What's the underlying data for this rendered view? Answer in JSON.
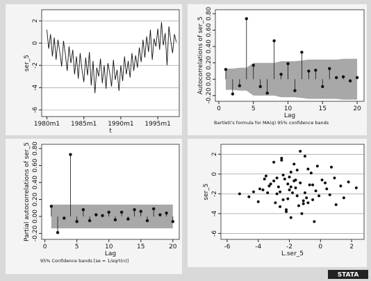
{
  "chart_data": [
    {
      "type": "line",
      "xlabel": "t",
      "ylabel": "ser_5",
      "color": "#111111",
      "grid": true,
      "x": [
        1980,
        1980.25,
        1980.5,
        1980.75,
        1981,
        1981.25,
        1981.5,
        1981.75,
        1982,
        1982.25,
        1982.5,
        1982.75,
        1983,
        1983.25,
        1983.5,
        1983.75,
        1984,
        1984.25,
        1984.5,
        1984.75,
        1985,
        1985.25,
        1985.5,
        1985.75,
        1986,
        1986.25,
        1986.5,
        1986.75,
        1987,
        1987.25,
        1987.5,
        1987.75,
        1988,
        1988.25,
        1988.5,
        1988.75,
        1989,
        1989.25,
        1989.5,
        1989.75,
        1990,
        1990.25,
        1990.5,
        1990.75,
        1991,
        1991.25,
        1991.5,
        1991.75,
        1992,
        1992.25,
        1992.5,
        1992.75,
        1993,
        1993.25,
        1993.5,
        1993.75,
        1994,
        1994.25,
        1994.5,
        1994.75,
        1995,
        1995.25,
        1995.5,
        1995.75,
        1996,
        1996.25,
        1996.5,
        1996.75,
        1997,
        1997.25,
        1997.5
      ],
      "values": [
        1.2,
        -0.5,
        0.8,
        -1.2,
        0.5,
        -1.5,
        0.3,
        -0.8,
        -2.1,
        0.2,
        -1.0,
        -2.5,
        -0.3,
        -1.8,
        -0.6,
        -2.8,
        -1.2,
        -3.2,
        -0.9,
        -2.4,
        -3.5,
        -1.3,
        -2.9,
        -0.8,
        -3.8,
        -1.6,
        -4.5,
        -2.2,
        -3.0,
        -1.4,
        -3.6,
        -2.0,
        -4.1,
        -1.8,
        -2.7,
        -3.9,
        -1.5,
        -3.3,
        -2.4,
        -4.3,
        -2.0,
        -3.4,
        -1.2,
        -2.8,
        -1.6,
        -3.1,
        -0.9,
        -2.5,
        -1.1,
        -2.2,
        -0.4,
        -1.7,
        0.3,
        -1.3,
        0.6,
        -0.8,
        1.2,
        -1.5,
        0.4,
        -0.3,
        1.3,
        -0.6,
        1.9,
        -0.2,
        0.9,
        -2.0,
        1.5,
        0.2,
        -0.9,
        0.8,
        0.1
      ],
      "xlim": [
        1979.3,
        1997.9
      ],
      "ylim": [
        -6.6,
        3
      ],
      "xticks": [
        {
          "value": 1980,
          "label": "1980m1"
        },
        {
          "value": 1985,
          "label": "1985m1"
        },
        {
          "value": 1990,
          "label": "1990m1"
        },
        {
          "value": 1995,
          "label": "1995m1"
        }
      ],
      "yticks": [
        -6,
        -4,
        -2,
        0,
        2
      ]
    },
    {
      "type": "stem",
      "xlabel": "Lag",
      "ylabel": "Autocorrelations of ser_5",
      "note": "Bartlett's formula for MA(q) 95% confidence bands",
      "color": "#111111",
      "band_color": "#a8a8a8",
      "grid": false,
      "x": [
        1,
        2,
        3,
        4,
        5,
        6,
        7,
        8,
        9,
        10,
        11,
        12,
        13,
        14,
        15,
        16,
        17,
        18,
        19,
        20
      ],
      "values": [
        0.12,
        -0.18,
        -0.08,
        0.74,
        0.17,
        -0.09,
        -0.17,
        0.47,
        0.06,
        0.19,
        -0.14,
        0.33,
        0.1,
        0.11,
        -0.09,
        0.13,
        0.02,
        0.03,
        -0.02,
        0.02
      ],
      "band_upper": [
        0.13,
        0.13,
        0.14,
        0.14,
        0.2,
        0.2,
        0.2,
        0.2,
        0.22,
        0.22,
        0.22,
        0.23,
        0.24,
        0.24,
        0.24,
        0.24,
        0.24,
        0.25,
        0.25,
        0.25
      ],
      "band_lower": [
        -0.13,
        -0.13,
        -0.14,
        -0.14,
        -0.2,
        -0.2,
        -0.2,
        -0.2,
        -0.22,
        -0.22,
        -0.22,
        -0.23,
        -0.24,
        -0.24,
        -0.24,
        -0.24,
        -0.24,
        -0.25,
        -0.25,
        -0.25
      ],
      "xlim": [
        -0.5,
        21
      ],
      "ylim": [
        -0.27,
        0.85
      ],
      "xticks": [
        0,
        5,
        10,
        15,
        20
      ],
      "yticks": [
        {
          "value": -0.2,
          "label": "-0.20"
        },
        {
          "value": 0,
          "label": "0.00"
        },
        {
          "value": 0.2,
          "label": "0.20"
        },
        {
          "value": 0.4,
          "label": "0.40"
        },
        {
          "value": 0.6,
          "label": "0.60"
        },
        {
          "value": 0.8,
          "label": "0.80"
        }
      ]
    },
    {
      "type": "stem",
      "xlabel": "Lag",
      "ylabel": "Partial autocorrelations of ser_5",
      "note": "95% Confidence bands [se = 1/sqrt(n)]",
      "color": "#111111",
      "band_color": "#a8a8a8",
      "grid": false,
      "x": [
        1,
        2,
        3,
        4,
        5,
        6,
        7,
        8,
        9,
        10,
        11,
        12,
        13,
        14,
        15,
        16,
        17,
        18,
        19,
        20
      ],
      "values": [
        0.12,
        -0.19,
        -0.02,
        0.73,
        -0.06,
        0.08,
        -0.05,
        0.02,
        0.01,
        0.05,
        -0.04,
        0.05,
        -0.03,
        0.08,
        0.06,
        -0.05,
        0.09,
        0.02,
        0.04,
        -0.06
      ],
      "band_upper": [
        0.14,
        0.14,
        0.14,
        0.14,
        0.14,
        0.14,
        0.14,
        0.14,
        0.14,
        0.14,
        0.14,
        0.14,
        0.14,
        0.14,
        0.14,
        0.14,
        0.14,
        0.14,
        0.14,
        0.14
      ],
      "band_lower": [
        -0.14,
        -0.14,
        -0.14,
        -0.14,
        -0.14,
        -0.14,
        -0.14,
        -0.14,
        -0.14,
        -0.14,
        -0.14,
        -0.14,
        -0.14,
        -0.14,
        -0.14,
        -0.14,
        -0.14,
        -0.14,
        -0.14,
        -0.14
      ],
      "xlim": [
        -0.5,
        21
      ],
      "ylim": [
        -0.27,
        0.85
      ],
      "xticks": [
        0,
        5,
        10,
        15,
        20
      ],
      "yticks": [
        {
          "value": -0.2,
          "label": "-0.20"
        },
        {
          "value": 0,
          "label": "0.00"
        },
        {
          "value": 0.2,
          "label": "0.20"
        },
        {
          "value": 0.4,
          "label": "0.40"
        },
        {
          "value": 0.6,
          "label": "0.60"
        },
        {
          "value": 0.8,
          "label": "0.80"
        }
      ]
    },
    {
      "type": "scatter",
      "xlabel": "L.ser_5",
      "ylabel": "ser_5",
      "color": "#111111",
      "grid": true,
      "x": [
        -2.1,
        -1.5,
        -0.8,
        -2.6,
        -3.0,
        -1.1,
        0.4,
        -1.9,
        -2.4,
        -0.5,
        -3.4,
        -1.7,
        0.9,
        -2.2,
        -1.3,
        -2.8,
        -0.2,
        -1.6,
        -4.0,
        -2.0,
        1.3,
        -0.9,
        -2.5,
        -3.7,
        -1.2,
        0.1,
        -2.9,
        -1.8,
        -0.6,
        -3.2,
        -1.4,
        -2.3,
        0.6,
        -4.6,
        -1.0,
        -2.7,
        -0.3,
        -1.9,
        1.8,
        -3.5,
        -2.1,
        -0.7,
        -1.5,
        -2.6,
        0.3,
        -3.9,
        -1.1,
        -2.4,
        -0.4,
        2.3,
        -5.2,
        -1.7,
        -3.0,
        -0.1,
        -2.0,
        1.0,
        -2.8,
        -1.3,
        -3.3,
        -0.8,
        -1.6,
        -4.3,
        0.7,
        -2.2,
        -1.9,
        -0.5,
        -3.6,
        -2.5,
        1.5,
        -1.0
      ],
      "values": [
        -1.0,
        -2.2,
        0.5,
        -1.8,
        -0.7,
        -3.0,
        -1.5,
        0.2,
        -2.6,
        -1.1,
        -1.9,
        1.0,
        -0.4,
        -3.6,
        -0.9,
        -2.0,
        0.8,
        -1.4,
        -2.8,
        -0.3,
        -1.2,
        -2.4,
        1.4,
        -1.6,
        -4.0,
        -0.6,
        -2.9,
        -1.9,
        0.1,
        -1.0,
        -3.2,
        -0.5,
        -2.1,
        -2.3,
        1.8,
        -1.3,
        -1.7,
        -4.4,
        -0.8,
        -0.2,
        -2.5,
        -1.1,
        0.4,
        -3.3,
        -0.9,
        -1.5,
        -2.7,
        -0.1,
        -4.8,
        -1.4,
        -2.0,
        -0.7,
        1.2,
        -2.2,
        -1.6,
        -3.1,
        -0.4,
        2.3,
        -1.2,
        -2.9,
        -0.6,
        -1.8,
        0.7,
        -3.8,
        -1.3,
        -2.6,
        -0.5,
        1.6,
        -2.4,
        -1.9
      ],
      "xlim": [
        -6.4,
        2.8
      ],
      "ylim": [
        -6.6,
        3
      ],
      "xticks": [
        -6,
        -4,
        -2,
        0,
        2
      ],
      "yticks": [
        -6,
        -4,
        -2,
        0,
        2
      ]
    }
  ],
  "logo": "STATA"
}
